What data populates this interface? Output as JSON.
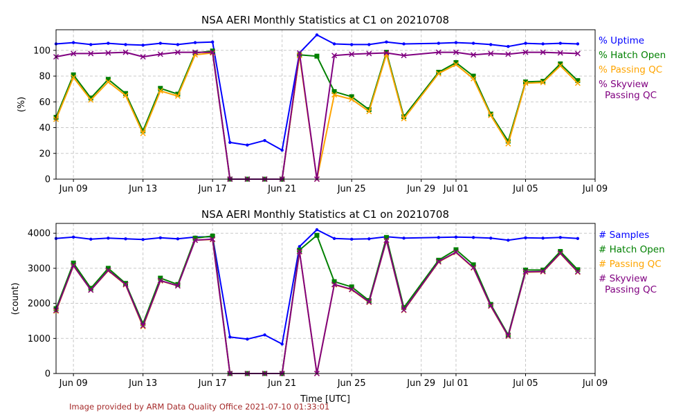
{
  "colors": {
    "uptime": "#0000ff",
    "hatch": "#008000",
    "qc": "#ffa500",
    "skyview": "#800080",
    "credit": "#a52a2a"
  },
  "chart_data": [
    {
      "type": "line",
      "title": "NSA AERI Monthly Statistics at C1 on 20210708",
      "xlabel": "",
      "ylabel": "(%)",
      "xlim": [
        "2021-06-08",
        "2021-07-09"
      ],
      "ylim": [
        0,
        116
      ],
      "yticks": [
        0,
        20,
        40,
        60,
        80,
        100
      ],
      "xtick_labels": [
        "Jun 09",
        "Jun 13",
        "Jun 17",
        "Jun 21",
        "Jun 25",
        "Jun 29",
        "Jul 01",
        "Jul 05",
        "Jul 09"
      ],
      "x": [
        "2021-06-08",
        "2021-06-09",
        "2021-06-10",
        "2021-06-11",
        "2021-06-12",
        "2021-06-13",
        "2021-06-14",
        "2021-06-15",
        "2021-06-16",
        "2021-06-17",
        "2021-06-18",
        "2021-06-19",
        "2021-06-20",
        "2021-06-21",
        "2021-06-22",
        "2021-06-23",
        "2021-06-24",
        "2021-06-25",
        "2021-06-26",
        "2021-06-27",
        "2021-06-28",
        "2021-06-30",
        "2021-07-01",
        "2021-07-02",
        "2021-07-03",
        "2021-07-04",
        "2021-07-05",
        "2021-07-06",
        "2021-07-07",
        "2021-07-08"
      ],
      "series": [
        {
          "name": "% Uptime",
          "values": [
            105,
            106,
            104.5,
            105.5,
            104.5,
            104,
            105.5,
            104.5,
            106,
            106.5,
            28.5,
            26.5,
            30,
            22.5,
            98,
            112,
            105,
            104.5,
            104.5,
            106.5,
            105,
            105.5,
            106,
            105.5,
            104.5,
            103,
            105.5,
            105,
            105.5,
            105
          ]
        },
        {
          "name": "% Hatch Open",
          "values": [
            48,
            81,
            63,
            77.5,
            66.5,
            37.5,
            70.5,
            66,
            98,
            99.5,
            0,
            0,
            0,
            0,
            96.5,
            95.5,
            68,
            64,
            54,
            98.5,
            48.5,
            83,
            90.5,
            80,
            50.5,
            29.5,
            75.5,
            76,
            89.5,
            76.5
          ]
        },
        {
          "name": "% Passing QC",
          "values": [
            46.5,
            79,
            61.5,
            75.5,
            65,
            35.5,
            68.5,
            64.5,
            96.5,
            98,
            0,
            0,
            0,
            0,
            96,
            0,
            65.5,
            62,
            52.5,
            97,
            47,
            82,
            89,
            78,
            49.5,
            27.5,
            74.5,
            75,
            88,
            74.5
          ]
        },
        {
          "name": "% Skyview Passing QC",
          "values": [
            95,
            97.5,
            97.5,
            98,
            98.5,
            95,
            97,
            98.5,
            98.5,
            98.5,
            0,
            0,
            0,
            0,
            98,
            0,
            96,
            97,
            97.5,
            98,
            96,
            98.5,
            98.5,
            96.5,
            97.5,
            97,
            98.5,
            98.5,
            98,
            97.5
          ]
        }
      ],
      "legend": [
        "% Uptime",
        "% Hatch Open",
        "% Passing QC",
        "% Skyview\nPassing QC"
      ],
      "legend_position": "right"
    },
    {
      "type": "line",
      "title": "NSA AERI Monthly Statistics at C1 on 20210708",
      "xlabel": "Time [UTC]",
      "ylabel": "(count)",
      "xlim": [
        "2021-06-08",
        "2021-07-09"
      ],
      "ylim": [
        0,
        4280
      ],
      "yticks": [
        0,
        1000,
        2000,
        3000,
        4000
      ],
      "xtick_labels": [
        "Jun 09",
        "Jun 13",
        "Jun 17",
        "Jun 21",
        "Jun 25",
        "Jun 29",
        "Jul 01",
        "Jul 05",
        "Jul 09"
      ],
      "x": [
        "2021-06-08",
        "2021-06-09",
        "2021-06-10",
        "2021-06-11",
        "2021-06-12",
        "2021-06-13",
        "2021-06-14",
        "2021-06-15",
        "2021-06-16",
        "2021-06-17",
        "2021-06-18",
        "2021-06-19",
        "2021-06-20",
        "2021-06-21",
        "2021-06-22",
        "2021-06-23",
        "2021-06-24",
        "2021-06-25",
        "2021-06-26",
        "2021-06-27",
        "2021-06-28",
        "2021-06-30",
        "2021-07-01",
        "2021-07-02",
        "2021-07-03",
        "2021-07-04",
        "2021-07-05",
        "2021-07-06",
        "2021-07-07",
        "2021-07-08"
      ],
      "series": [
        {
          "name": "# Samples",
          "values": [
            3850,
            3890,
            3830,
            3860,
            3840,
            3820,
            3870,
            3840,
            3890,
            3900,
            1040,
            980,
            1100,
            840,
            3620,
            4100,
            3850,
            3830,
            3840,
            3900,
            3860,
            3880,
            3890,
            3880,
            3860,
            3800,
            3870,
            3860,
            3880,
            3850
          ]
        },
        {
          "name": "# Hatch Open",
          "values": [
            1850,
            3150,
            2430,
            3000,
            2570,
            1420,
            2720,
            2540,
            3860,
            3920,
            0,
            0,
            0,
            0,
            3520,
            3940,
            2620,
            2470,
            2080,
            3880,
            1880,
            3230,
            3530,
            3100,
            1970,
            1100,
            2950,
            2950,
            3480,
            2960
          ]
        },
        {
          "name": "# Passing QC",
          "values": [
            1780,
            3070,
            2380,
            2930,
            2530,
            1340,
            2640,
            2500,
            3800,
            3820,
            0,
            0,
            0,
            0,
            3470,
            0,
            2530,
            2390,
            2030,
            3790,
            1800,
            3180,
            3450,
            3010,
            1920,
            1060,
            2890,
            2900,
            3420,
            2890
          ]
        },
        {
          "name": "# Skyview Passing QC",
          "values": [
            1800,
            3080,
            2380,
            2940,
            2540,
            1360,
            2650,
            2500,
            3800,
            3830,
            0,
            0,
            0,
            0,
            3480,
            0,
            2540,
            2400,
            2040,
            3800,
            1810,
            3190,
            3460,
            3020,
            1930,
            1070,
            2900,
            2910,
            3430,
            2900
          ]
        }
      ],
      "legend": [
        "# Samples",
        "# Hatch Open",
        "# Passing QC",
        "# Skyview\nPassing QC"
      ],
      "legend_position": "right"
    }
  ],
  "top_legend": {
    "uptime": "% Uptime",
    "hatch": "% Hatch Open",
    "qc": "% Passing QC",
    "skyview_1": "% Skyview",
    "skyview_2": "Passing QC"
  },
  "bottom_legend": {
    "samples": "# Samples",
    "hatch": "# Hatch Open",
    "qc": "# Passing QC",
    "skyview_1": "# Skyview",
    "skyview_2": "Passing QC"
  },
  "credit": "Image provided by ARM Data Quality Office 2021-07-10 01:33:01"
}
